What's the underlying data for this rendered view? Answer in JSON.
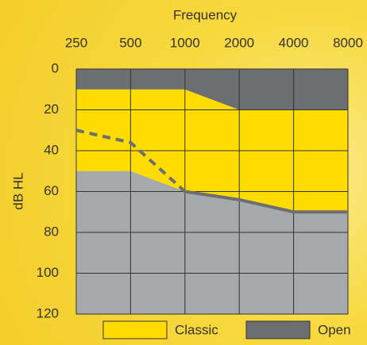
{
  "chart_data": {
    "type": "area",
    "xlabel": "Frequency",
    "ylabel": "dB HL",
    "categories": [
      "250",
      "500",
      "1000",
      "2000",
      "4000",
      "8000"
    ],
    "series": [
      {
        "name": "Open",
        "color": "#6d6e71",
        "values": [
          10,
          10,
          10,
          20,
          20,
          20
        ]
      },
      {
        "name": "Classic",
        "color": "#ffdc00",
        "values": [
          50,
          50,
          60,
          64,
          70,
          70
        ]
      }
    ],
    "lines": [
      {
        "color": "#6d6e71",
        "dashed": true,
        "values": [
          30,
          36,
          60,
          null,
          null,
          null
        ]
      },
      {
        "color": "#6d6e71",
        "dashed": false,
        "values": [
          null,
          null,
          60,
          64,
          70,
          70
        ]
      }
    ],
    "ylim": [
      0,
      120
    ],
    "y_inverted": true,
    "yticks": [
      0,
      20,
      40,
      60,
      80,
      100,
      120
    ],
    "grid": true
  }
}
